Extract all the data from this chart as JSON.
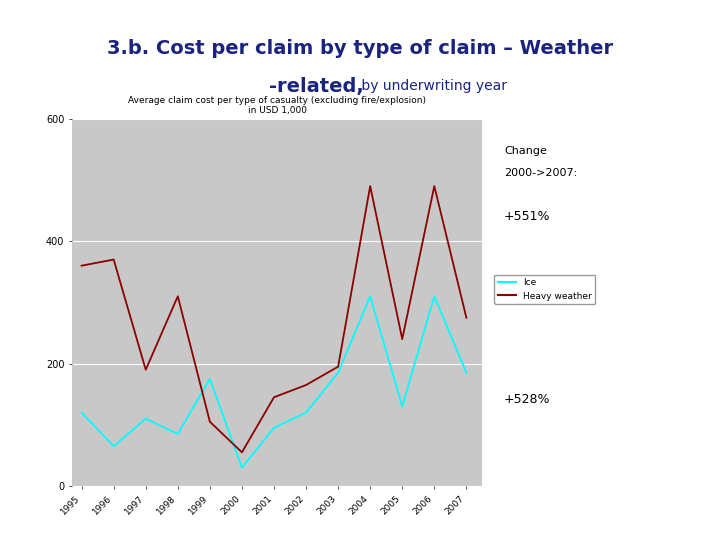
{
  "chart_title": "Average claim cost per type of casualty (excluding fire/explosion)",
  "chart_subtitle": "in USD 1,000",
  "years": [
    1995,
    1996,
    1997,
    1998,
    1999,
    2000,
    2001,
    2002,
    2003,
    2004,
    2005,
    2006,
    2007
  ],
  "ice": [
    120,
    65,
    110,
    85,
    175,
    30,
    95,
    120,
    185,
    310,
    130,
    310,
    185
  ],
  "heavy_weather": [
    360,
    370,
    190,
    310,
    105,
    55,
    145,
    165,
    195,
    490,
    240,
    490,
    275
  ],
  "ylim": [
    0,
    600
  ],
  "yticks": [
    0,
    200,
    400,
    600
  ],
  "ice_color": "#00FFFF",
  "heavy_weather_color": "#8B0000",
  "plot_bg": "#C8C8C8",
  "slide_bg": "#FFFFFF",
  "left_bar_color": "#1a3a8c",
  "title_color": "#1a237e",
  "title_bold": "3.b. Cost per claim by type of claim – Weather",
  "title_bold2": "-related,",
  "title_normal": " by underwriting year"
}
